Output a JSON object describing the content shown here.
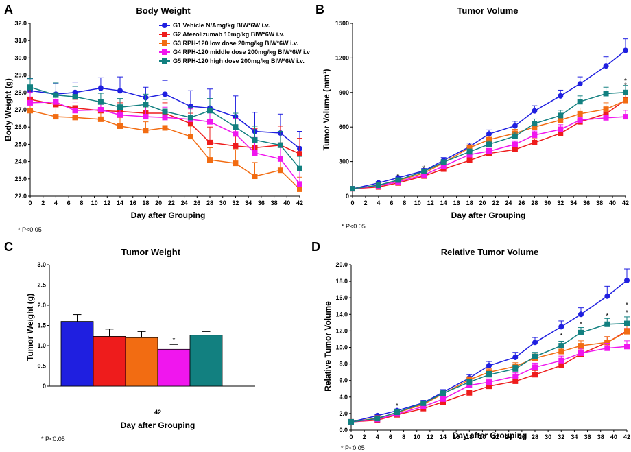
{
  "colors": {
    "G1": "#1f1fe0",
    "G2": "#ee1c1c",
    "G3": "#f26c12",
    "G4": "#f016ee",
    "G5": "#128080"
  },
  "legend": [
    "G1 Vehicle N/Amg/kg BIW*6W i.v.",
    "G2 Atezolizumab 10mg/kg BIW*6W i.v.",
    "G3 RPH-120 low dose 20mg/kg BIW*6W i.v.",
    "G4 RPH-120 middle dose 200mg/kg BIW*6W i.v",
    "G5 RPH-120 high dose 200mg/kg BIW*6W i.v."
  ],
  "chart_data": [
    {
      "panel": "A",
      "type": "line",
      "title": "Body Weight",
      "xlabel": "Day after Grouping",
      "ylabel": "Body Weight (g)",
      "xlim": [
        0,
        42
      ],
      "ylim": [
        22.0,
        32.0
      ],
      "xticks": [
        "0",
        "2",
        "4",
        "6",
        "8",
        "10",
        "12",
        "14",
        "16",
        "18",
        "20",
        "22",
        "24",
        "26",
        "28",
        "30",
        "32",
        "34",
        "36",
        "38",
        "40",
        "42"
      ],
      "yticks": [
        "22.0",
        "23.0",
        "24.0",
        "25.0",
        "26.0",
        "27.0",
        "28.0",
        "29.0",
        "30.0",
        "31.0",
        "32.0"
      ],
      "x": [
        0,
        4,
        7,
        11,
        14,
        18,
        21,
        25,
        28,
        32,
        35,
        39,
        42
      ],
      "series": [
        {
          "name": "G1",
          "values": [
            28.1,
            27.9,
            28.0,
            28.25,
            28.1,
            27.7,
            27.9,
            27.2,
            27.1,
            26.6,
            25.75,
            25.65,
            24.75
          ],
          "errors": [
            0.7,
            0.6,
            0.6,
            0.6,
            0.8,
            0.6,
            0.8,
            0.9,
            1.1,
            1.2,
            1.1,
            1.1,
            1.0
          ]
        },
        {
          "name": "G2",
          "values": [
            27.6,
            27.3,
            27.1,
            26.95,
            26.9,
            26.8,
            26.8,
            26.2,
            25.1,
            24.9,
            24.8,
            24.95,
            24.45
          ],
          "errors": [
            0.6,
            0.5,
            0.5,
            0.5,
            0.5,
            0.5,
            0.6,
            0.6,
            0.9,
            1.0,
            1.1,
            1.1,
            0.9
          ]
        },
        {
          "name": "G3",
          "values": [
            26.95,
            26.6,
            26.55,
            26.45,
            26.05,
            25.8,
            25.95,
            25.45,
            24.1,
            23.9,
            23.15,
            23.5,
            22.4
          ],
          "errors": [
            0.6,
            0.5,
            0.5,
            0.5,
            0.5,
            0.5,
            0.6,
            0.6,
            0.7,
            0.8,
            0.8,
            0.8,
            0.7
          ]
        },
        {
          "name": "G4",
          "values": [
            27.4,
            27.45,
            26.95,
            27.0,
            26.7,
            26.6,
            26.55,
            26.45,
            26.3,
            25.6,
            24.5,
            24.15,
            22.7
          ],
          "errors": [
            0.6,
            0.5,
            0.5,
            0.5,
            0.5,
            0.5,
            0.6,
            0.6,
            0.7,
            0.9,
            0.9,
            0.9,
            0.8
          ]
        },
        {
          "name": "G5",
          "values": [
            28.3,
            27.85,
            27.75,
            27.45,
            27.15,
            27.3,
            26.9,
            26.55,
            26.95,
            26.0,
            25.25,
            24.95,
            23.6
          ],
          "errors": [
            0.5,
            0.7,
            0.6,
            0.5,
            0.5,
            0.6,
            0.7,
            0.6,
            0.7,
            0.8,
            0.8,
            0.8,
            0.7
          ]
        }
      ],
      "footnote": "*  P<0.05"
    },
    {
      "panel": "B",
      "type": "line",
      "title": "Tumor Volume",
      "xlabel": "Day after Grouping",
      "ylabel": "Tumor Volume (mm³)",
      "xlim": [
        0,
        42
      ],
      "ylim": [
        0,
        1500
      ],
      "xticks": [
        "0",
        "2",
        "4",
        "6",
        "8",
        "10",
        "12",
        "14",
        "16",
        "18",
        "20",
        "22",
        "24",
        "26",
        "28",
        "30",
        "32",
        "34",
        "36",
        "38",
        "40",
        "42"
      ],
      "yticks": [
        "0",
        "300",
        "600",
        "900",
        "1200",
        "1500"
      ],
      "x": [
        0,
        4,
        7,
        11,
        14,
        18,
        21,
        25,
        28,
        32,
        35,
        39,
        42
      ],
      "series": [
        {
          "name": "G1",
          "values": [
            65,
            115,
            160,
            220,
            310,
            430,
            540,
            610,
            740,
            870,
            975,
            1130,
            1265
          ],
          "errors": [
            8,
            12,
            15,
            20,
            25,
            30,
            35,
            40,
            45,
            50,
            60,
            80,
            100
          ]
        },
        {
          "name": "G2",
          "values": [
            65,
            80,
            115,
            175,
            235,
            310,
            370,
            405,
            465,
            545,
            645,
            715,
            835
          ],
          "errors": [
            8,
            10,
            12,
            15,
            20,
            25,
            25,
            30,
            35,
            40,
            45,
            55,
            60
          ]
        },
        {
          "name": "G3",
          "values": [
            65,
            95,
            135,
            200,
            290,
            420,
            490,
            545,
            600,
            660,
            715,
            755,
            830
          ],
          "errors": [
            8,
            10,
            12,
            15,
            20,
            25,
            30,
            35,
            40,
            45,
            50,
            55,
            60
          ]
        },
        {
          "name": "G4",
          "values": [
            65,
            90,
            125,
            185,
            260,
            360,
            390,
            450,
            530,
            580,
            660,
            680,
            690
          ],
          "errors": [
            8,
            10,
            12,
            15,
            20,
            25,
            25,
            30,
            35,
            40,
            45,
            50,
            55
          ]
        },
        {
          "name": "G5",
          "values": [
            65,
            95,
            140,
            215,
            295,
            385,
            450,
            520,
            630,
            700,
            820,
            890,
            900
          ],
          "errors": [
            8,
            10,
            12,
            15,
            20,
            25,
            30,
            35,
            40,
            45,
            50,
            55,
            60
          ]
        }
      ],
      "stars": [
        {
          "x": 7,
          "y": 175
        },
        {
          "x": 11,
          "y": 240
        },
        {
          "x": 42,
          "y": 960
        },
        {
          "x": 42,
          "y": 1000
        }
      ],
      "footnote": "*  P<0.05"
    },
    {
      "panel": "C",
      "type": "bar",
      "title": "Tumor Weight",
      "xlabel": "Day after Grouping",
      "ylabel": "Tumor Weight (g)",
      "ylim": [
        0,
        3.0
      ],
      "yticks": [
        "0",
        "0.5",
        "1.0",
        "1.5",
        "2.0",
        "2.5",
        "3.0"
      ],
      "categories": [
        "42"
      ],
      "series": [
        {
          "name": "G1",
          "value": 1.6,
          "error": 0.17
        },
        {
          "name": "G2",
          "value": 1.23,
          "error": 0.18
        },
        {
          "name": "G3",
          "value": 1.2,
          "error": 0.15
        },
        {
          "name": "G4",
          "value": 0.91,
          "error": 0.12,
          "star": "*"
        },
        {
          "name": "G5",
          "value": 1.26,
          "error": 0.09
        }
      ],
      "footnote": "*  P<0.05"
    },
    {
      "panel": "D",
      "type": "line",
      "title": "Relative Tumor Volume",
      "xlabel": "Day after Grouping",
      "ylabel": "Relative Tumor Volume",
      "xlim": [
        0,
        42
      ],
      "ylim": [
        0,
        20.0
      ],
      "xticks": [
        "0",
        "2",
        "4",
        "6",
        "8",
        "10",
        "12",
        "14",
        "16",
        "18",
        "20",
        "22",
        "24",
        "26",
        "28",
        "30",
        "32",
        "34",
        "36",
        "38",
        "40",
        "42"
      ],
      "yticks": [
        "0.0",
        "2.0",
        "4.0",
        "6.0",
        "8.0",
        "10.0",
        "12.0",
        "14.0",
        "16.0",
        "18.0",
        "20.0"
      ],
      "x": [
        0,
        4,
        7,
        11,
        14,
        18,
        21,
        25,
        28,
        32,
        35,
        39,
        42
      ],
      "series": [
        {
          "name": "G1",
          "values": [
            1.0,
            1.75,
            2.35,
            3.3,
            4.6,
            6.3,
            7.8,
            8.8,
            10.6,
            12.5,
            14.0,
            16.2,
            18.1
          ],
          "errors": [
            0.1,
            0.15,
            0.2,
            0.3,
            0.3,
            0.4,
            0.5,
            0.6,
            0.6,
            0.7,
            0.8,
            1.2,
            1.4
          ]
        },
        {
          "name": "G2",
          "values": [
            1.0,
            1.2,
            1.85,
            2.6,
            3.4,
            4.5,
            5.3,
            5.9,
            6.7,
            7.8,
            9.2,
            10.6,
            12.0
          ],
          "errors": [
            0.1,
            0.15,
            0.2,
            0.25,
            0.3,
            0.35,
            0.4,
            0.45,
            0.5,
            0.55,
            0.6,
            0.7,
            0.8
          ]
        },
        {
          "name": "G3",
          "values": [
            1.0,
            1.45,
            2.1,
            3.1,
            4.4,
            6.1,
            7.0,
            7.7,
            8.7,
            9.5,
            10.2,
            10.6,
            11.9
          ],
          "errors": [
            0.1,
            0.15,
            0.2,
            0.25,
            0.3,
            0.35,
            0.4,
            0.45,
            0.5,
            0.55,
            0.6,
            0.7,
            0.8
          ]
        },
        {
          "name": "G4",
          "values": [
            1.0,
            1.3,
            1.95,
            2.85,
            3.75,
            5.4,
            5.8,
            6.5,
            7.6,
            8.4,
            9.3,
            9.9,
            10.1
          ],
          "errors": [
            0.1,
            0.15,
            0.2,
            0.25,
            0.3,
            0.35,
            0.4,
            0.45,
            0.5,
            0.55,
            0.6,
            0.6,
            0.7
          ]
        },
        {
          "name": "G5",
          "values": [
            1.0,
            1.4,
            2.15,
            3.25,
            4.45,
            5.8,
            6.7,
            7.4,
            8.9,
            10.2,
            11.8,
            12.8,
            12.9
          ],
          "errors": [
            0.1,
            0.15,
            0.2,
            0.25,
            0.3,
            0.35,
            0.4,
            0.45,
            0.5,
            0.55,
            0.6,
            0.7,
            0.8
          ]
        }
      ],
      "stars": [
        {
          "x": 7,
          "y": 2.9
        },
        {
          "x": 32,
          "y": 11.4
        },
        {
          "x": 35,
          "y": 12.8
        },
        {
          "x": 39,
          "y": 13.8
        },
        {
          "x": 42,
          "y": 14.2
        },
        {
          "x": 42,
          "y": 15.1
        }
      ],
      "footnote": "*  P<0.05"
    }
  ]
}
